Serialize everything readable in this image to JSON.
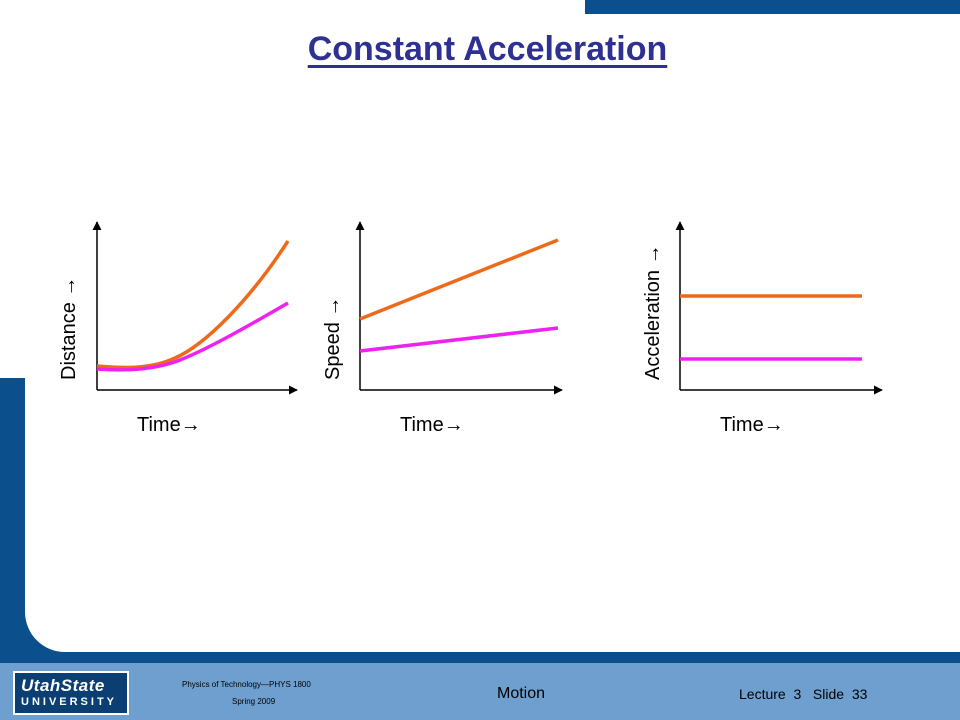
{
  "slide": {
    "title": "Constant Acceleration"
  },
  "colors": {
    "orange": "#ee6a1b",
    "magenta": "#ee22ee",
    "title_blue": "#2e3192",
    "frame_blue": "#0b4f8c",
    "footer_blue": "#6f9fcf"
  },
  "chart_data": [
    {
      "type": "line",
      "ylabel": "Distance →",
      "xlabel": "Time→",
      "series": [
        {
          "color": "#ee6a1b",
          "shape": "parabola-steep"
        },
        {
          "color": "#ee22ee",
          "shape": "parabola-shallow"
        }
      ]
    },
    {
      "type": "line",
      "ylabel": "Speed →",
      "xlabel": "Time→",
      "series": [
        {
          "color": "#ee6a1b",
          "shape": "straight-line-steep"
        },
        {
          "color": "#ee22ee",
          "shape": "straight-line-shallow"
        }
      ]
    },
    {
      "type": "line",
      "ylabel": "Acceleration →",
      "xlabel": "Time→",
      "series": [
        {
          "color": "#ee6a1b",
          "shape": "horizontal-high"
        },
        {
          "color": "#ee22ee",
          "shape": "horizontal-low"
        }
      ]
    }
  ],
  "footer": {
    "logo_top": "UtahState",
    "logo_bottom": "UNIVERSITY",
    "course": "Physics of Technology—PHYS 1800",
    "term": "Spring 2009",
    "topic": "Motion",
    "lecture": "Lecture  3   Slide  33"
  }
}
